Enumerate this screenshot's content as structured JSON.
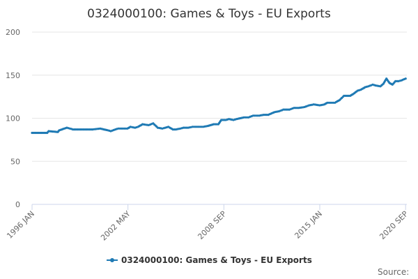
{
  "chart_data": {
    "type": "line",
    "title": "0324000100: Games & Toys - EU Exports",
    "xlabel": "",
    "ylabel": "",
    "ylim": [
      0,
      200
    ],
    "y_ticks": [
      0,
      50,
      100,
      150,
      200
    ],
    "x_tick_labels": [
      "1996 JAN",
      "2002 MAY",
      "2008 SEP",
      "2015 JAN",
      "2020 SEP"
    ],
    "x_tick_positions": [
      1996.0,
      2002.333,
      2008.667,
      2015.0,
      2020.667
    ],
    "xlim": [
      1996.0,
      2020.75
    ],
    "grid": true,
    "legend": "bottom-center",
    "color": "#1f7ab4",
    "series": [
      {
        "name": "0324000100: Games & Toys - EU Exports",
        "x": [
          1996.0,
          1997.0,
          1997.1,
          1997.7,
          1997.8,
          1998.3,
          1998.5,
          1998.7,
          1999.0,
          1999.5,
          2000.0,
          2000.5,
          2001.0,
          2001.2,
          2001.5,
          2001.7,
          2002.0,
          2002.3,
          2002.5,
          2002.8,
          2003.0,
          2003.3,
          2003.7,
          2004.0,
          2004.3,
          2004.6,
          2004.8,
          2005.0,
          2005.3,
          2005.5,
          2005.8,
          2006.0,
          2006.3,
          2006.6,
          2007.0,
          2007.3,
          2007.6,
          2008.0,
          2008.3,
          2008.5,
          2008.7,
          2008.8,
          2009.0,
          2009.3,
          2009.5,
          2010.0,
          2010.3,
          2010.6,
          2011.0,
          2011.3,
          2011.6,
          2012.0,
          2012.3,
          2012.6,
          2013.0,
          2013.3,
          2013.6,
          2014.0,
          2014.3,
          2014.6,
          2015.0,
          2015.3,
          2015.5,
          2016.0,
          2016.3,
          2016.6,
          2017.0,
          2017.2,
          2017.5,
          2017.7,
          2018.0,
          2018.2,
          2018.5,
          2018.7,
          2019.0,
          2019.2,
          2019.4,
          2019.6,
          2019.8,
          2020.0,
          2020.2,
          2020.4,
          2020.67
        ],
        "values": [
          83,
          83,
          85,
          84,
          86,
          89,
          88,
          87,
          87,
          87,
          87,
          88,
          86,
          85,
          87,
          88,
          88,
          88,
          90,
          89,
          90,
          93,
          92,
          94,
          89,
          88,
          89,
          90,
          87,
          87,
          88,
          89,
          89,
          90,
          90,
          90,
          91,
          93,
          93,
          98,
          98,
          98,
          99,
          98,
          99,
          101,
          101,
          103,
          103,
          104,
          104,
          107,
          108,
          110,
          110,
          112,
          112,
          113,
          115,
          116,
          115,
          116,
          118,
          118,
          121,
          126,
          126,
          128,
          132,
          133,
          136,
          137,
          139,
          138,
          137,
          140,
          146,
          141,
          139,
          143,
          143,
          144,
          146
        ]
      }
    ]
  },
  "source_label": "Source:"
}
